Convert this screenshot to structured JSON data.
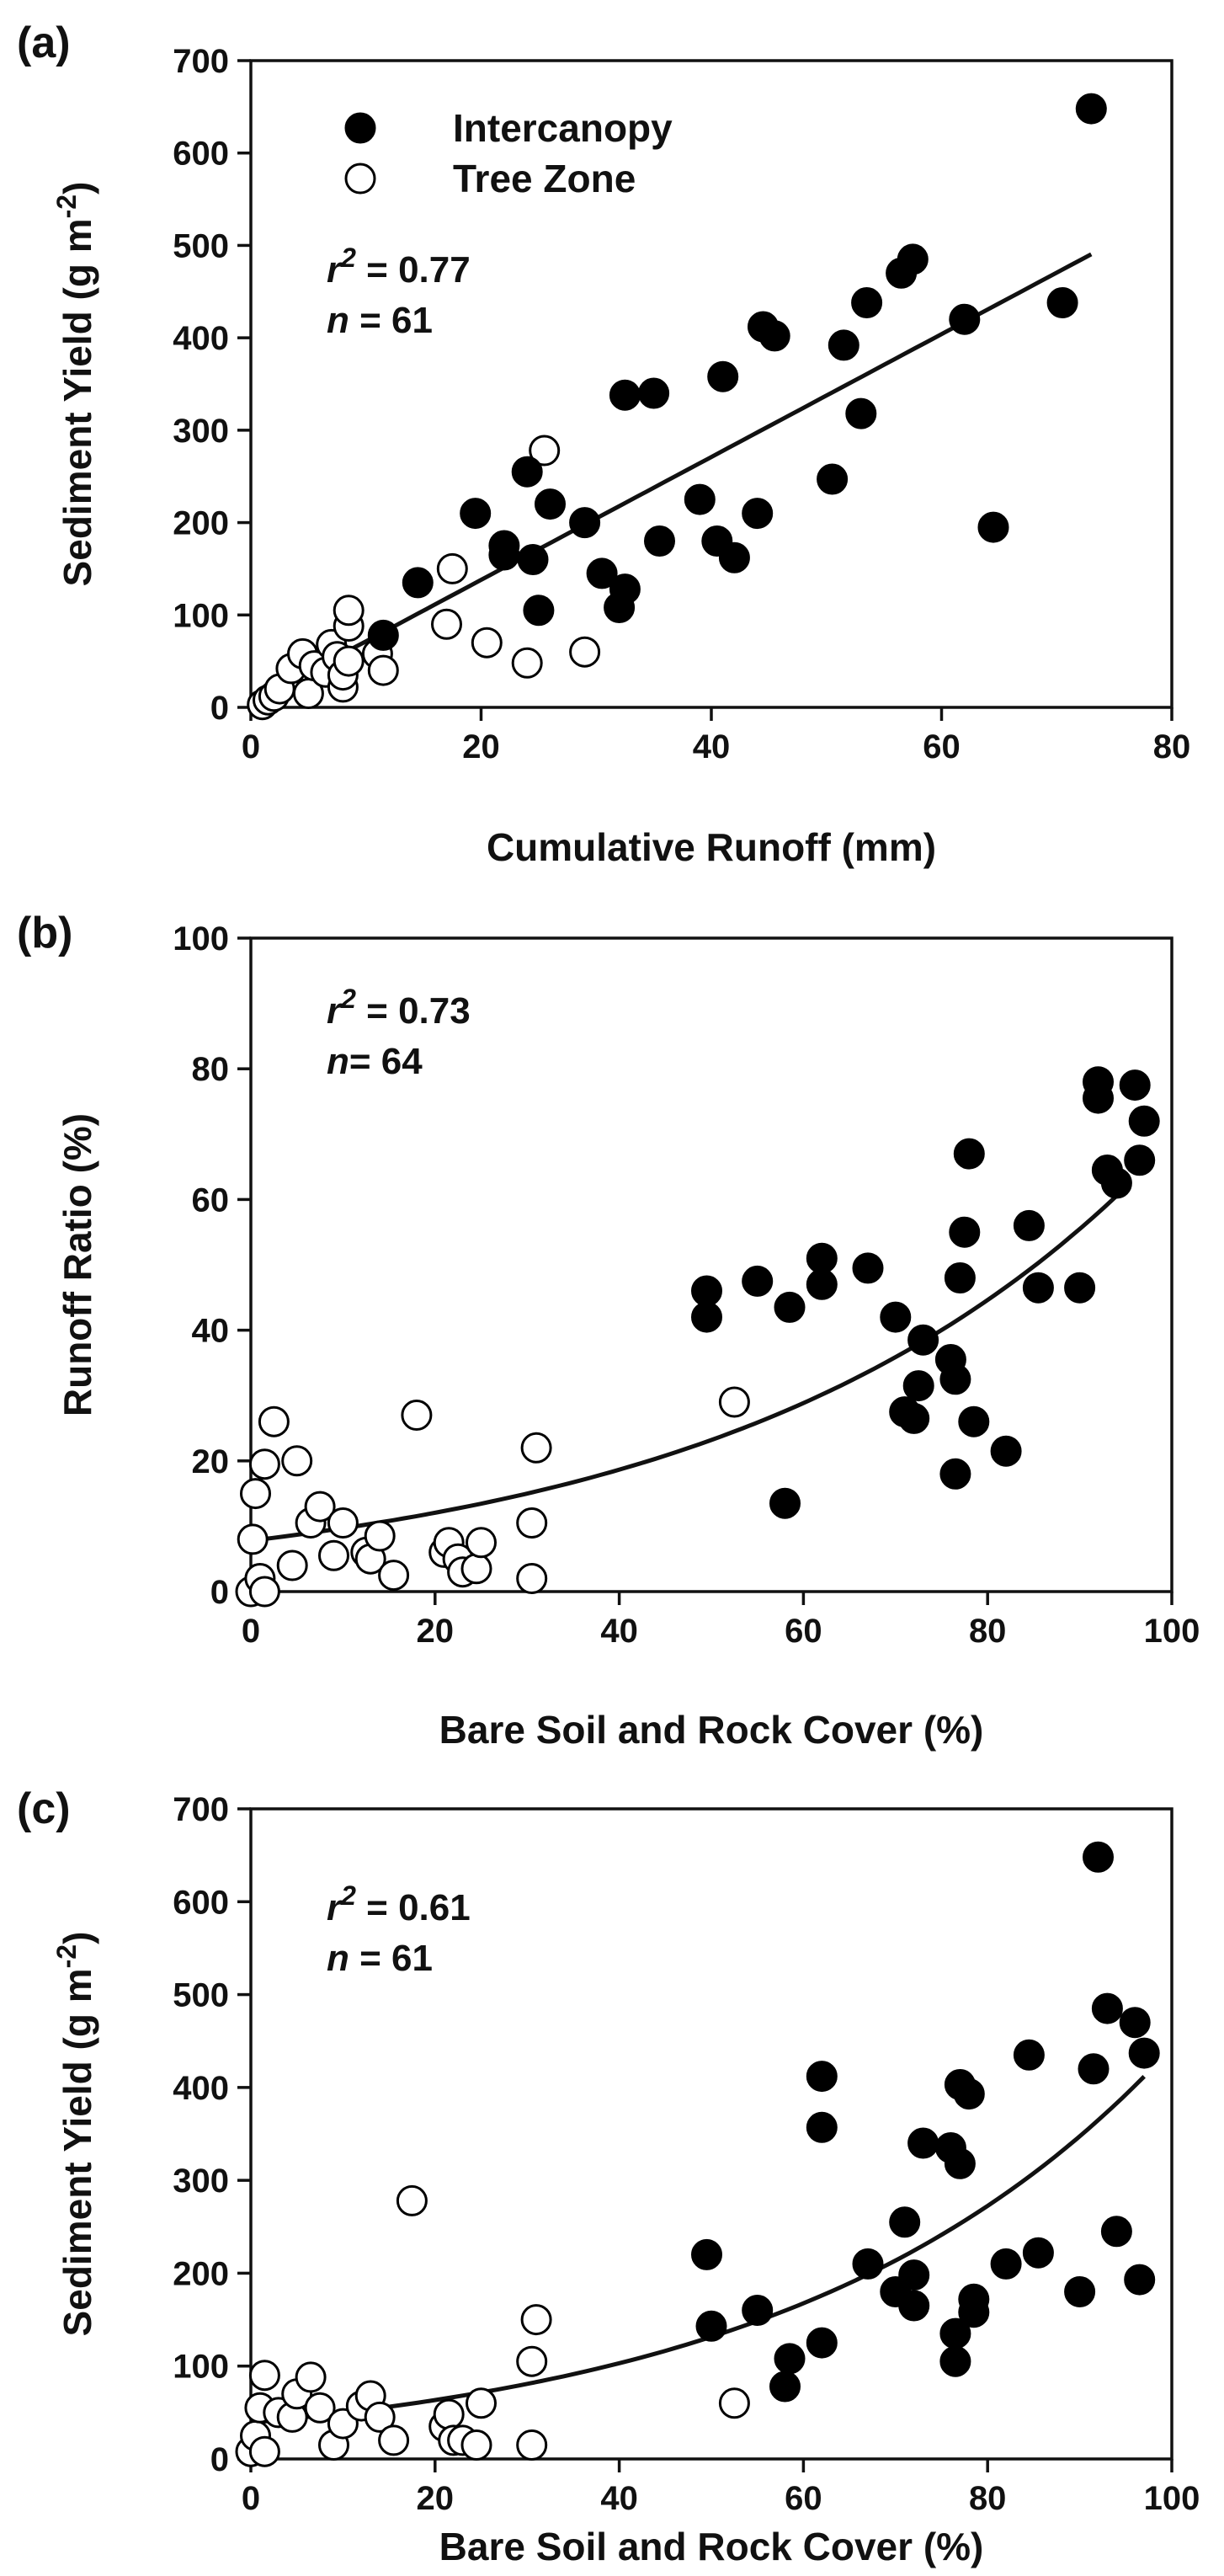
{
  "chart_data": [
    {
      "type": "scatter",
      "panel_label": "(a)",
      "xlabel": "Cumulative Runoff (mm)",
      "ylabel": "Sediment Yield (g m",
      "ylabel_sup": "-2",
      "ylabel_close": ")",
      "xlim": [
        0,
        80
      ],
      "ylim": [
        0,
        700
      ],
      "xticks": [
        0,
        20,
        40,
        60,
        80
      ],
      "yticks": [
        0,
        100,
        200,
        300,
        400,
        500,
        600,
        700
      ],
      "legend": {
        "position": "top-left",
        "entries": [
          {
            "name": "Intercanopy",
            "marker": "filled-circle"
          },
          {
            "name": "Tree Zone",
            "marker": "open-circle"
          }
        ]
      },
      "stats": {
        "r2_label": "r",
        "r2_sup": "2",
        "r2_value": " = 0.77",
        "n_label": "n",
        "n_value": " = 61"
      },
      "fit": {
        "kind": "linear",
        "slope": 6.65,
        "intercept": 5,
        "x_range": [
          1,
          73
        ]
      },
      "series": [
        {
          "name": "Intercanopy",
          "marker": "filled",
          "points": [
            [
              11.5,
              78
            ],
            [
              14.5,
              135
            ],
            [
              19.5,
              210
            ],
            [
              22,
              175
            ],
            [
              22,
              165
            ],
            [
              24,
              255
            ],
            [
              25,
              105
            ],
            [
              24.5,
              160
            ],
            [
              26,
              220
            ],
            [
              29,
              200
            ],
            [
              30.5,
              145
            ],
            [
              32,
              108
            ],
            [
              32.5,
              128
            ],
            [
              32.5,
              338
            ],
            [
              35,
              340
            ],
            [
              35.5,
              180
            ],
            [
              39,
              225
            ],
            [
              40.5,
              180
            ],
            [
              41,
              358
            ],
            [
              42,
              162
            ],
            [
              44,
              210
            ],
            [
              44.5,
              412
            ],
            [
              45.5,
              402
            ],
            [
              50.5,
              247
            ],
            [
              51.5,
              392
            ],
            [
              53,
              318
            ],
            [
              53.5,
              438
            ],
            [
              56.5,
              470
            ],
            [
              57.5,
              485
            ],
            [
              62,
              420
            ],
            [
              64.5,
              195
            ],
            [
              70.5,
              438
            ],
            [
              73,
              648
            ]
          ]
        },
        {
          "name": "Tree Zone",
          "marker": "open",
          "points": [
            [
              1,
              3
            ],
            [
              1.5,
              8
            ],
            [
              2,
              12
            ],
            [
              2.5,
              20
            ],
            [
              3.5,
              42
            ],
            [
              4.5,
              58
            ],
            [
              5,
              15
            ],
            [
              5.5,
              45
            ],
            [
              6.5,
              38
            ],
            [
              7,
              68
            ],
            [
              7.5,
              55
            ],
            [
              8,
              22
            ],
            [
              8,
              35
            ],
            [
              8.5,
              50
            ],
            [
              8.5,
              88
            ],
            [
              8.5,
              105
            ],
            [
              11,
              58
            ],
            [
              11.5,
              40
            ],
            [
              17,
              90
            ],
            [
              17.5,
              150
            ],
            [
              20.5,
              70
            ],
            [
              24,
              48
            ],
            [
              25.5,
              278
            ],
            [
              29,
              60
            ]
          ]
        }
      ]
    },
    {
      "type": "scatter",
      "panel_label": "(b)",
      "xlabel": "Bare Soil and Rock Cover (%)",
      "ylabel": "Runoff Ratio (%)",
      "xlim": [
        0,
        100
      ],
      "ylim": [
        0,
        100
      ],
      "xticks": [
        0,
        20,
        40,
        60,
        80,
        100
      ],
      "yticks": [
        0,
        20,
        40,
        60,
        80,
        100
      ],
      "stats": {
        "r2_label": "r",
        "r2_sup": "2",
        "r2_value": " = 0.73",
        "n_label": "n",
        "n_value": "= 64"
      },
      "fit": {
        "kind": "exponential",
        "a": 7.8,
        "b": 0.0218,
        "x_range": [
          0,
          95
        ]
      },
      "series": [
        {
          "name": "Intercanopy",
          "marker": "filled",
          "points": [
            [
              49.5,
              46
            ],
            [
              49.5,
              42
            ],
            [
              55,
              47.5
            ],
            [
              58,
              13.5
            ],
            [
              58.5,
              43.5
            ],
            [
              62,
              51
            ],
            [
              62,
              47
            ],
            [
              67,
              49.5
            ],
            [
              70,
              42
            ],
            [
              71,
              27.5
            ],
            [
              72,
              26.5
            ],
            [
              72.5,
              31.5
            ],
            [
              73,
              38.5
            ],
            [
              76,
              35.5
            ],
            [
              76.5,
              32.5
            ],
            [
              76.5,
              18
            ],
            [
              77,
              48
            ],
            [
              77.5,
              55
            ],
            [
              78,
              67
            ],
            [
              78.5,
              26
            ],
            [
              82,
              21.5
            ],
            [
              84.5,
              56
            ],
            [
              85.5,
              46.5
            ],
            [
              90,
              46.5
            ],
            [
              92,
              78
            ],
            [
              92,
              75.5
            ],
            [
              93,
              64.5
            ],
            [
              94,
              62.5
            ],
            [
              96,
              77.5
            ],
            [
              96.5,
              66
            ],
            [
              97,
              72
            ]
          ]
        },
        {
          "name": "Tree Zone",
          "marker": "open",
          "points": [
            [
              0,
              0
            ],
            [
              0.2,
              8
            ],
            [
              0.5,
              15
            ],
            [
              1,
              2
            ],
            [
              1.5,
              19.5
            ],
            [
              1.5,
              0
            ],
            [
              2.5,
              26
            ],
            [
              4.5,
              4
            ],
            [
              5,
              20
            ],
            [
              6.5,
              10.5
            ],
            [
              7.5,
              13
            ],
            [
              9,
              5.5
            ],
            [
              10,
              10.5
            ],
            [
              12.5,
              6
            ],
            [
              13,
              5
            ],
            [
              14,
              8.5
            ],
            [
              15.5,
              2.5
            ],
            [
              18,
              27
            ],
            [
              21,
              6
            ],
            [
              21.5,
              7.5
            ],
            [
              22.5,
              5
            ],
            [
              23,
              3
            ],
            [
              24.5,
              3.5
            ],
            [
              25,
              7.5
            ],
            [
              30.5,
              2
            ],
            [
              30.5,
              10.5
            ],
            [
              31,
              22
            ],
            [
              52.5,
              29
            ]
          ]
        }
      ]
    },
    {
      "type": "scatter",
      "panel_label": "(c)",
      "xlabel": "Bare Soil and Rock Cover (%)",
      "ylabel": "Sediment Yield (g m",
      "ylabel_sup": "-2",
      "ylabel_close": ")",
      "xlim": [
        0,
        100
      ],
      "ylim": [
        0,
        700
      ],
      "xticks": [
        0,
        20,
        40,
        60,
        80,
        100
      ],
      "yticks": [
        0,
        100,
        200,
        300,
        400,
        500,
        600,
        700
      ],
      "stats": {
        "r2_label": "r",
        "r2_sup": "2",
        "r2_value": " = 0.61",
        "n_label": "n",
        "n_value": " = 61"
      },
      "fit": {
        "kind": "exponential",
        "a": 39,
        "b": 0.0243,
        "x_range": [
          0,
          97
        ]
      },
      "series": [
        {
          "name": "Intercanopy",
          "marker": "filled",
          "points": [
            [
              49.5,
              220
            ],
            [
              50,
              143
            ],
            [
              55,
              160
            ],
            [
              58,
              78
            ],
            [
              58.5,
              108
            ],
            [
              62,
              412
            ],
            [
              62,
              357
            ],
            [
              62,
              125
            ],
            [
              67,
              210
            ],
            [
              70,
              180
            ],
            [
              71,
              255
            ],
            [
              72,
              165
            ],
            [
              72,
              198
            ],
            [
              73,
              340
            ],
            [
              76,
              335
            ],
            [
              76.5,
              135
            ],
            [
              76.5,
              105
            ],
            [
              77,
              403
            ],
            [
              77,
              318
            ],
            [
              78,
              393
            ],
            [
              78.5,
              172
            ],
            [
              78.5,
              158
            ],
            [
              82,
              210
            ],
            [
              84.5,
              435
            ],
            [
              85.5,
              222
            ],
            [
              90,
              180
            ],
            [
              91.5,
              420
            ],
            [
              92,
              648
            ],
            [
              93,
              485
            ],
            [
              94,
              245
            ],
            [
              96,
              470
            ],
            [
              96.5,
              193
            ],
            [
              97,
              437
            ]
          ]
        },
        {
          "name": "Tree Zone",
          "marker": "open",
          "points": [
            [
              0,
              8
            ],
            [
              0.5,
              25
            ],
            [
              1,
              55
            ],
            [
              1.5,
              8
            ],
            [
              1.5,
              90
            ],
            [
              3,
              50
            ],
            [
              4.5,
              45
            ],
            [
              5,
              70
            ],
            [
              6.5,
              88
            ],
            [
              7.5,
              55
            ],
            [
              9,
              15
            ],
            [
              10,
              38
            ],
            [
              12,
              57
            ],
            [
              13,
              68
            ],
            [
              14,
              45
            ],
            [
              15.5,
              20
            ],
            [
              17.5,
              278
            ],
            [
              21,
              35
            ],
            [
              21.5,
              48
            ],
            [
              22,
              20
            ],
            [
              23,
              20
            ],
            [
              24.5,
              15
            ],
            [
              25,
              60
            ],
            [
              30.5,
              15
            ],
            [
              30.5,
              105
            ],
            [
              31,
              150
            ],
            [
              52.5,
              60
            ]
          ]
        }
      ]
    }
  ]
}
